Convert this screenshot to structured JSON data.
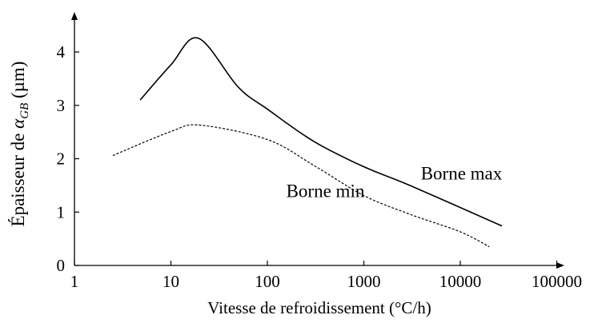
{
  "chart_data": {
    "type": "line",
    "xlabel": "Vitesse de refroidissement (°C/h)",
    "ylabel": {
      "text": "Épaisseur de ",
      "symbol": "α",
      "subscript": "GB",
      "unit": "(µm)"
    },
    "xscale": "log",
    "xlim": [
      1,
      120000
    ],
    "xticks": [
      1,
      10,
      100,
      1000,
      10000,
      100000
    ],
    "ylim": [
      0,
      4.75
    ],
    "yticks": [
      0,
      1,
      2,
      3,
      4
    ],
    "series": [
      {
        "name": "Borne max",
        "color": "#000000",
        "dash": "solid",
        "x": [
          4.8,
          10,
          19.2,
          50,
          100,
          300,
          1000,
          3000,
          27000
        ],
        "values": [
          3.1,
          3.76,
          4.26,
          3.34,
          2.93,
          2.33,
          1.85,
          1.5,
          0.74
        ]
      },
      {
        "name": "Borne min",
        "color": "#000000",
        "dash": "dashed",
        "x": [
          2.5,
          10,
          20,
          100,
          300,
          1000,
          3000,
          10000,
          20000
        ],
        "values": [
          2.06,
          2.51,
          2.63,
          2.36,
          1.88,
          1.31,
          0.96,
          0.63,
          0.35
        ]
      }
    ]
  }
}
